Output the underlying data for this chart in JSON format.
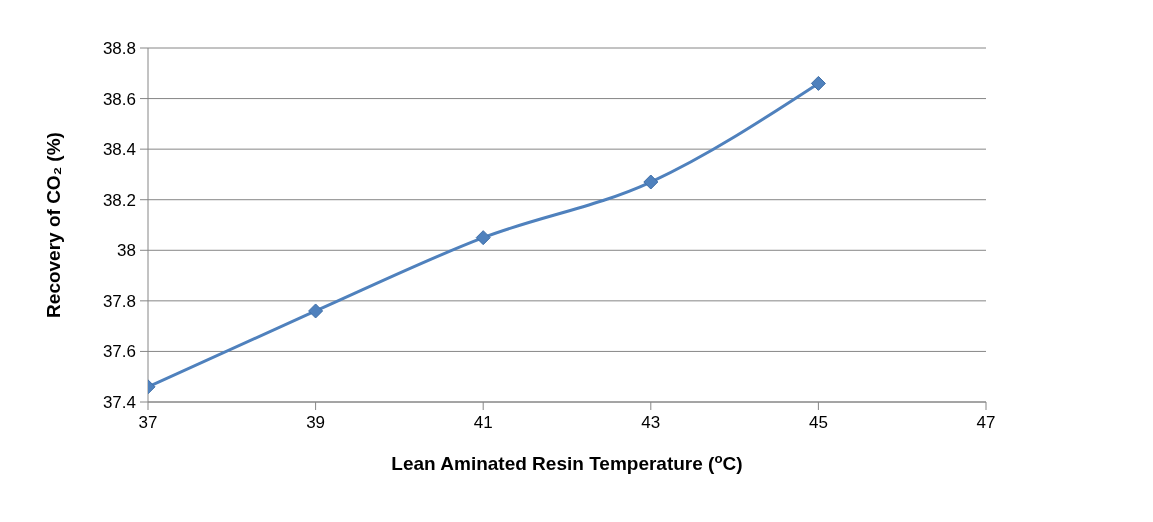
{
  "chart_data": {
    "type": "line",
    "xlabel": "Lean Aminated Resin Temperature ($^{o}$C)",
    "ylabel": "Recovery of CO₂ (%)",
    "x": [
      37,
      39,
      41,
      43,
      45
    ],
    "series": [
      {
        "color": "#4f81bd",
        "values": [
          37.46,
          37.76,
          38.05,
          38.27,
          38.66
        ]
      }
    ],
    "xlim": [
      37,
      47
    ],
    "xticks": [
      37,
      39,
      41,
      43,
      45,
      47
    ],
    "ylim": [
      37.4,
      38.8
    ],
    "yticks": [
      37.4,
      37.6,
      37.8,
      38,
      38.2,
      38.4,
      38.6,
      38.8
    ],
    "grid": "y",
    "legend": false,
    "marker": "diamond",
    "line_style": "solid"
  }
}
